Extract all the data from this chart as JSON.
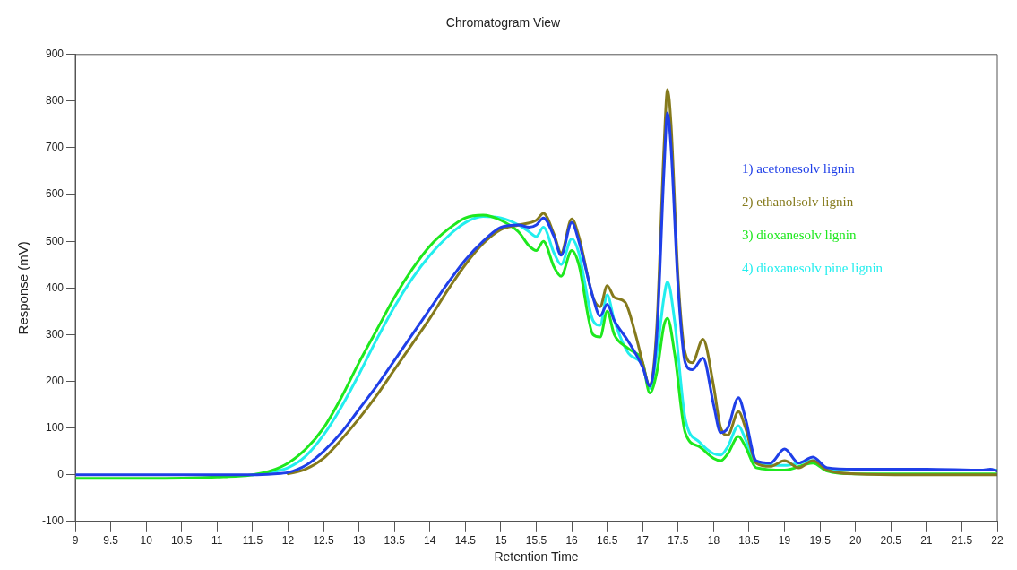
{
  "chart_data": {
    "type": "line",
    "title": "Chromatogram View",
    "xlabel": "Retention Time",
    "ylabel": "Response (mV)",
    "legend": "top right",
    "grid": false,
    "marker": "none",
    "line_style": "solid",
    "xlim": [
      9,
      22
    ],
    "xticks": [
      9,
      9.5,
      10,
      10.5,
      11,
      11.5,
      12,
      12.5,
      13,
      13.5,
      14,
      14.5,
      15,
      15.5,
      16,
      16.5,
      17,
      17.5,
      18,
      18.5,
      19,
      19.5,
      20,
      20.5,
      21,
      21.5,
      22
    ],
    "ylim": [
      -100,
      900
    ],
    "yticks": [
      -100,
      0,
      100,
      200,
      300,
      400,
      500,
      600,
      700,
      800,
      900
    ],
    "series": [
      {
        "name": "1) acetonesolv lignin",
        "color": "#1f3fe8",
        "x": [
          9,
          10,
          11,
          11.5,
          11.8,
          12,
          12.25,
          12.5,
          12.75,
          13,
          13.25,
          13.5,
          13.75,
          14,
          14.25,
          14.5,
          14.75,
          15,
          15.25,
          15.4,
          15.5,
          15.6,
          15.75,
          15.85,
          16,
          16.1,
          16.3,
          16.4,
          16.5,
          16.6,
          16.8,
          17,
          17.1,
          17.2,
          17.3,
          17.35,
          17.4,
          17.5,
          17.6,
          17.7,
          17.85,
          18,
          18.1,
          18.2,
          18.35,
          18.45,
          18.6,
          18.8,
          19,
          19.2,
          19.4,
          19.6,
          20,
          21,
          21.8,
          21.9,
          22
        ],
        "values": [
          0,
          0,
          0,
          0,
          2,
          5,
          20,
          50,
          90,
          140,
          190,
          245,
          300,
          355,
          410,
          460,
          500,
          530,
          535,
          530,
          535,
          550,
          510,
          470,
          540,
          500,
          380,
          340,
          365,
          330,
          285,
          230,
          190,
          300,
          650,
          775,
          700,
          400,
          240,
          225,
          250,
          150,
          90,
          100,
          165,
          120,
          30,
          25,
          55,
          25,
          38,
          15,
          12,
          12,
          10,
          12,
          8
        ]
      },
      {
        "name": "2) ethanolsolv lignin",
        "color": "#857a1c",
        "x": [
          12,
          12.25,
          12.5,
          12.75,
          13,
          13.25,
          13.5,
          13.75,
          14,
          14.25,
          14.5,
          14.75,
          15,
          15.25,
          15.5,
          15.6,
          15.75,
          15.85,
          16,
          16.1,
          16.3,
          16.4,
          16.5,
          16.6,
          16.75,
          16.9,
          17,
          17.1,
          17.2,
          17.3,
          17.35,
          17.4,
          17.5,
          17.6,
          17.7,
          17.85,
          18,
          18.1,
          18.2,
          18.35,
          18.45,
          18.6,
          18.8,
          19,
          19.2,
          19.4,
          19.6,
          20,
          21,
          22
        ],
        "values": [
          2,
          12,
          35,
          75,
          120,
          170,
          225,
          280,
          335,
          395,
          450,
          495,
          525,
          535,
          545,
          560,
          515,
          475,
          548,
          510,
          380,
          360,
          405,
          380,
          370,
          300,
          240,
          190,
          320,
          700,
          825,
          750,
          420,
          260,
          240,
          290,
          190,
          100,
          85,
          135,
          100,
          25,
          18,
          30,
          15,
          30,
          10,
          2,
          0,
          0
        ]
      },
      {
        "name": "3) dioxanesolv lignin",
        "color": "#1ee81e",
        "x": [
          9,
          10,
          11,
          11.5,
          11.75,
          12,
          12.25,
          12.5,
          12.75,
          13,
          13.25,
          13.5,
          13.75,
          14,
          14.25,
          14.5,
          14.75,
          15,
          15.25,
          15.4,
          15.5,
          15.6,
          15.75,
          15.85,
          16,
          16.1,
          16.3,
          16.4,
          16.5,
          16.6,
          16.8,
          17,
          17.1,
          17.2,
          17.3,
          17.35,
          17.45,
          17.6,
          17.8,
          18,
          18.1,
          18.2,
          18.35,
          18.45,
          18.6,
          19,
          19.4,
          19.6,
          20,
          22
        ],
        "values": [
          -8,
          -8,
          -5,
          0,
          8,
          25,
          55,
          100,
          165,
          240,
          310,
          380,
          440,
          490,
          525,
          550,
          556,
          545,
          520,
          490,
          480,
          500,
          445,
          425,
          480,
          450,
          300,
          295,
          350,
          300,
          270,
          240,
          175,
          220,
          320,
          335,
          260,
          90,
          60,
          35,
          30,
          45,
          82,
          60,
          15,
          10,
          25,
          8,
          2,
          2
        ]
      },
      {
        "name": "4) dioxanesolv pine lignin",
        "color": "#22eeee",
        "x": [
          11.5,
          11.75,
          12,
          12.25,
          12.5,
          12.75,
          13,
          13.25,
          13.5,
          13.75,
          14,
          14.25,
          14.5,
          14.75,
          15,
          15.25,
          15.4,
          15.5,
          15.6,
          15.75,
          15.85,
          16,
          16.1,
          16.3,
          16.4,
          16.5,
          16.6,
          16.8,
          17,
          17.1,
          17.2,
          17.3,
          17.35,
          17.45,
          17.6,
          17.8,
          18,
          18.1,
          18.2,
          18.35,
          18.45,
          18.6,
          19,
          19.4,
          19.6,
          20,
          22
        ],
        "values": [
          0,
          5,
          15,
          40,
          85,
          145,
          215,
          290,
          360,
          420,
          470,
          510,
          540,
          553,
          550,
          535,
          520,
          510,
          530,
          475,
          450,
          505,
          475,
          330,
          320,
          385,
          330,
          260,
          235,
          185,
          260,
          380,
          413,
          330,
          120,
          70,
          45,
          42,
          60,
          105,
          75,
          25,
          20,
          30,
          12,
          10,
          10
        ]
      }
    ]
  }
}
